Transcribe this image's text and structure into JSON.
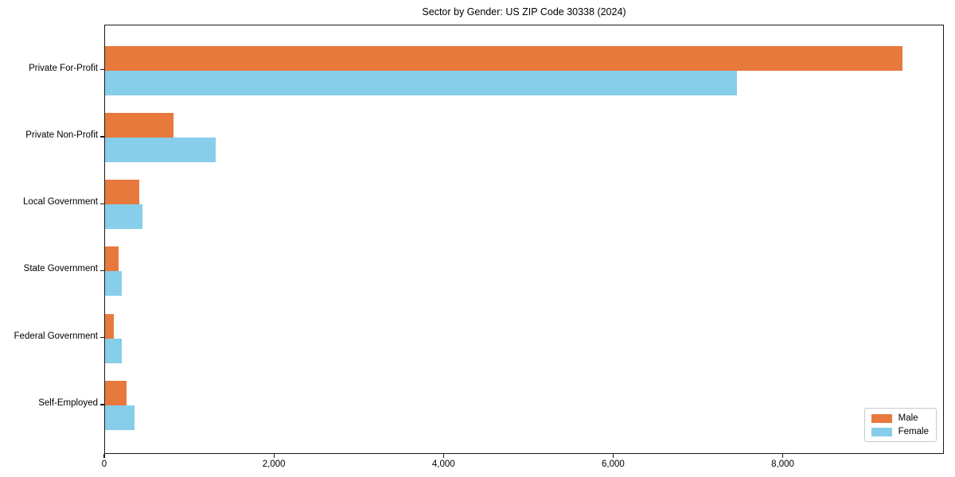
{
  "chart_data": {
    "type": "bar",
    "orientation": "horizontal",
    "title": "Sector by Gender: US ZIP Code 30338 (2024)",
    "categories": [
      "Private For-Profit",
      "Private Non-Profit",
      "Local Government",
      "State Government",
      "Federal Government",
      "Self-Employed"
    ],
    "series": [
      {
        "name": "Male",
        "color": "#E8793D",
        "values": [
          9400,
          810,
          400,
          160,
          100,
          250
        ]
      },
      {
        "name": "Female",
        "color": "#87CEEB",
        "values": [
          7450,
          1300,
          440,
          200,
          200,
          350
        ]
      }
    ],
    "xlabel": "",
    "ylabel": "",
    "xlim": [
      0,
      9900
    ],
    "x_ticks": [
      0,
      2000,
      4000,
      6000,
      8000
    ],
    "x_tick_labels": [
      "0",
      "2,000",
      "4,000",
      "6,000",
      "8,000"
    ],
    "grid": false,
    "legend": {
      "position": "lower right",
      "entries": [
        "Male",
        "Female"
      ]
    },
    "frame_color": "#1a1a1a",
    "background_color": "#ffffff"
  }
}
